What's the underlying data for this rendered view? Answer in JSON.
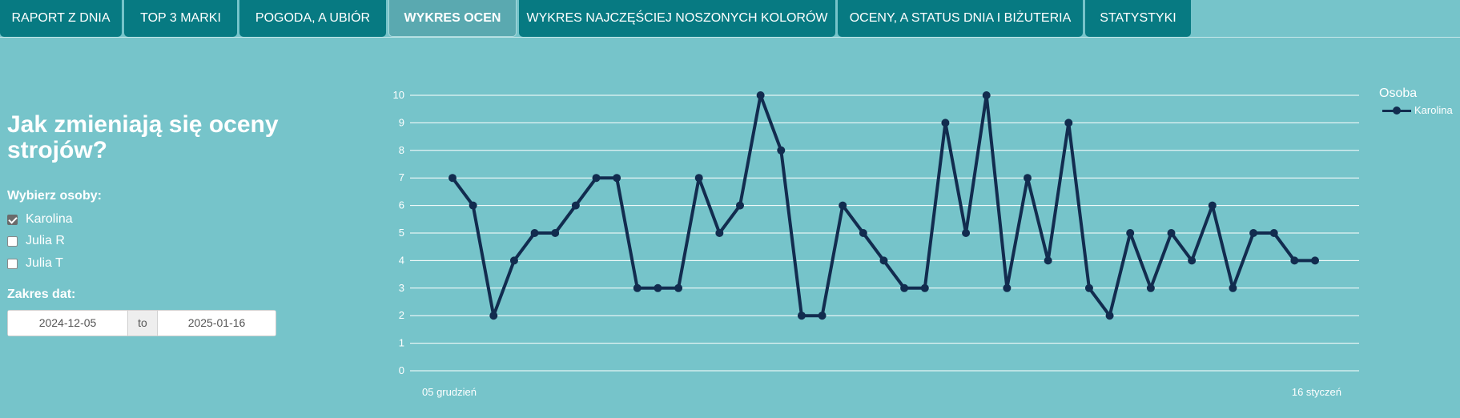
{
  "tabs": [
    {
      "label": "RAPORT Z DNIA",
      "active": false
    },
    {
      "label": "TOP 3 MARKI",
      "active": false
    },
    {
      "label": "POGODA, A UBIÓR",
      "active": false
    },
    {
      "label": "WYKRES OCEN",
      "active": true
    },
    {
      "label": "WYKRES NAJCZĘŚCIEJ NOSZONYCH KOLORÓW",
      "active": false
    },
    {
      "label": "OCENY, A STATUS DNIA I BIŻUTERIA",
      "active": false
    },
    {
      "label": "STATYSTYKI",
      "active": false
    }
  ],
  "sidebar": {
    "title": "Jak zmieniają się oceny strojów?",
    "persons_label": "Wybierz osoby:",
    "persons": [
      {
        "label": "Karolina",
        "checked": true
      },
      {
        "label": "Julia R",
        "checked": false
      },
      {
        "label": "Julia T",
        "checked": false
      }
    ],
    "date_label": "Zakres dat:",
    "date_start": "2024-12-05",
    "date_separator": "to",
    "date_end": "2025-01-16"
  },
  "colors": {
    "background": "#76c4ca",
    "tab": "#077a82",
    "tab_active": "#5aa9b0",
    "line": "#122c4f",
    "grid": "#ffffff"
  },
  "chart_data": {
    "type": "line",
    "title": "",
    "xlabel": "",
    "ylabel": "",
    "ylim": [
      0,
      10
    ],
    "yticks": [
      0,
      1,
      2,
      3,
      4,
      5,
      6,
      7,
      8,
      9,
      10
    ],
    "x_start_label": "05 grudzień",
    "x_end_label": "16 styczeń",
    "x": [
      "2024-12-05",
      "2024-12-06",
      "2024-12-07",
      "2024-12-08",
      "2024-12-09",
      "2024-12-10",
      "2024-12-11",
      "2024-12-12",
      "2024-12-13",
      "2024-12-14",
      "2024-12-15",
      "2024-12-16",
      "2024-12-17",
      "2024-12-18",
      "2024-12-19",
      "2024-12-20",
      "2024-12-21",
      "2024-12-22",
      "2024-12-23",
      "2024-12-24",
      "2024-12-25",
      "2024-12-26",
      "2024-12-27",
      "2024-12-28",
      "2024-12-29",
      "2024-12-30",
      "2024-12-31",
      "2025-01-01",
      "2025-01-02",
      "2025-01-03",
      "2025-01-04",
      "2025-01-05",
      "2025-01-06",
      "2025-01-07",
      "2025-01-08",
      "2025-01-09",
      "2025-01-10",
      "2025-01-11",
      "2025-01-12",
      "2025-01-13",
      "2025-01-14",
      "2025-01-15",
      "2025-01-16"
    ],
    "grid": true,
    "legend_title": "Osoba",
    "legend_position": "right",
    "series": [
      {
        "name": "Karolina",
        "color": "#122c4f",
        "values": [
          7,
          6,
          2,
          4,
          5,
          5,
          6,
          7,
          7,
          3,
          3,
          3,
          7,
          5,
          6,
          10,
          8,
          2,
          2,
          6,
          5,
          4,
          3,
          3,
          9,
          5,
          10,
          3,
          7,
          4,
          9,
          3,
          2,
          5,
          3,
          5,
          4,
          6,
          3,
          5,
          5,
          4,
          4
        ]
      }
    ]
  }
}
